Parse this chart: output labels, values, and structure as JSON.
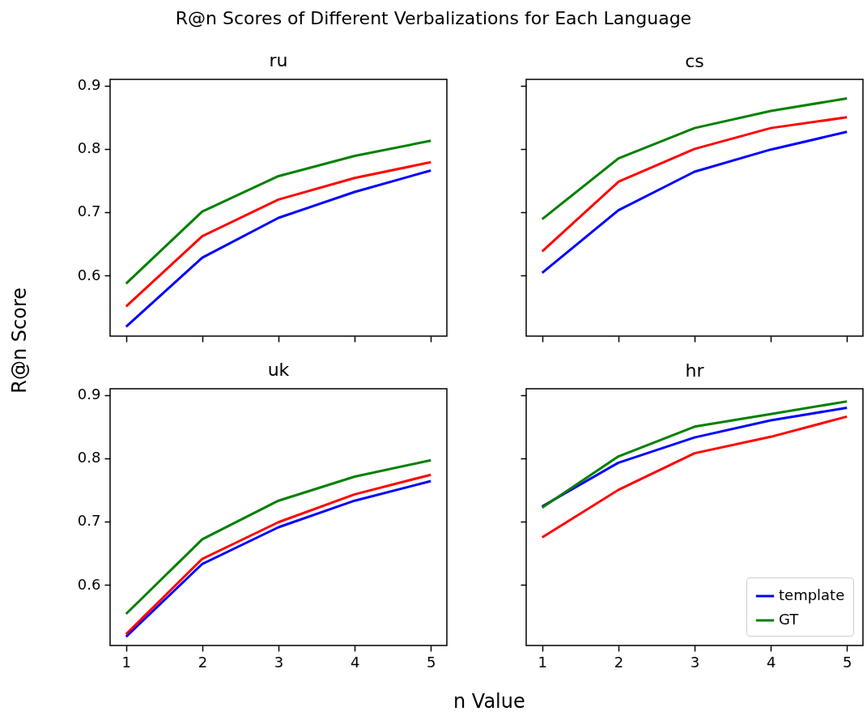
{
  "chart_data": [
    {
      "type": "line",
      "title": "ru",
      "annotations": [
        "R@n Scores of Different Verbalizations for Each Language"
      ],
      "ylabel": "R@n Score",
      "x": [
        1,
        2,
        3,
        4,
        5
      ],
      "xlim": [
        0.79,
        5.21
      ],
      "xticks": [
        1,
        2,
        3,
        4,
        5
      ],
      "ylim": [
        0.504,
        0.91
      ],
      "yticks": [
        0.6,
        0.7,
        0.8,
        0.9
      ],
      "tick_labels": "y",
      "line_style": "solid",
      "series": [
        {
          "color": "#0000ff",
          "values": [
            0.519,
            0.628,
            0.691,
            0.732,
            0.766
          ]
        },
        {
          "color": "#008000",
          "values": [
            0.587,
            0.701,
            0.757,
            0.789,
            0.813
          ]
        },
        {
          "color": "#ff0000",
          "values": [
            0.551,
            0.662,
            0.72,
            0.754,
            0.779
          ]
        }
      ]
    },
    {
      "type": "line",
      "title": "cs",
      "x": [
        1,
        2,
        3,
        4,
        5
      ],
      "xlim": [
        0.79,
        5.21
      ],
      "xticks": [
        1,
        2,
        3,
        4,
        5
      ],
      "ylim": [
        0.504,
        0.91
      ],
      "yticks": [
        0.6,
        0.7,
        0.8,
        0.9
      ],
      "tick_labels": false,
      "line_style": "solid",
      "series": [
        {
          "color": "#0000ff",
          "values": [
            0.604,
            0.703,
            0.764,
            0.799,
            0.827
          ]
        },
        {
          "color": "#008000",
          "values": [
            0.689,
            0.785,
            0.833,
            0.86,
            0.88
          ]
        },
        {
          "color": "#ff0000",
          "values": [
            0.638,
            0.748,
            0.8,
            0.833,
            0.85
          ]
        }
      ]
    },
    {
      "type": "line",
      "title": "uk",
      "xlabel": "n Value",
      "x": [
        1,
        2,
        3,
        4,
        5
      ],
      "xlim": [
        0.79,
        5.21
      ],
      "xticks": [
        1,
        2,
        3,
        4,
        5
      ],
      "ylim": [
        0.504,
        0.91
      ],
      "yticks": [
        0.6,
        0.7,
        0.8,
        0.9
      ],
      "line_style": "solid",
      "series": [
        {
          "color": "#0000ff",
          "values": [
            0.518,
            0.633,
            0.691,
            0.733,
            0.764
          ]
        },
        {
          "color": "#008000",
          "values": [
            0.554,
            0.672,
            0.733,
            0.771,
            0.797
          ]
        },
        {
          "color": "#ff0000",
          "values": [
            0.522,
            0.641,
            0.699,
            0.743,
            0.774
          ]
        }
      ]
    },
    {
      "type": "line",
      "title": "hr",
      "x": [
        1,
        2,
        3,
        4,
        5
      ],
      "xlim": [
        0.79,
        5.21
      ],
      "xticks": [
        1,
        2,
        3,
        4,
        5
      ],
      "ylim": [
        0.504,
        0.91
      ],
      "yticks": [
        0.6,
        0.7,
        0.8,
        0.9
      ],
      "tick_labels": "x",
      "legend": "bottom right",
      "line_style": "solid",
      "series": [
        {
          "name": "template",
          "color": "#0000ff",
          "values": [
            0.724,
            0.793,
            0.833,
            0.86,
            0.88
          ]
        },
        {
          "name": "GT",
          "color": "#008000",
          "values": [
            0.722,
            0.803,
            0.85,
            0.87,
            0.89
          ]
        },
        {
          "color": "#ff0000",
          "values": [
            0.675,
            0.75,
            0.808,
            0.834,
            0.866
          ]
        }
      ]
    }
  ]
}
